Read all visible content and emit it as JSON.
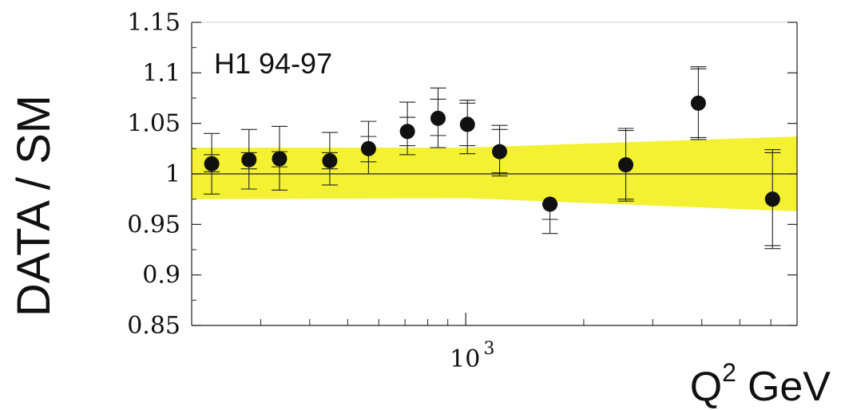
{
  "chart_data": {
    "type": "scatter",
    "xscale": "log",
    "xlim": [
      200,
      7000
    ],
    "ylim": [
      0.85,
      1.15
    ],
    "y_ticks": [
      0.85,
      0.9,
      0.95,
      1,
      1.05,
      1.1,
      1.15
    ],
    "y_tick_labels": [
      "0.85",
      "0.9",
      "0.95",
      "1",
      "1.05",
      "1.1",
      "1.15"
    ],
    "x_major_tick": {
      "value": 1000,
      "base": "10",
      "exponent": "3"
    },
    "xlabel": {
      "main": "Q",
      "sup": "2",
      "unit": "GeV"
    },
    "ylabel": "DATA / SM",
    "annotation": "H1 94-97",
    "reference_line": 1,
    "band": {
      "color": "#f2f020",
      "x": [
        200,
        1000,
        7000
      ],
      "lower": [
        0.975,
        0.976,
        0.963
      ],
      "upper": [
        1.026,
        1.026,
        1.037
      ]
    },
    "points": [
      {
        "x": 225,
        "y": 1.01,
        "err_tot": [
          0.98,
          1.04
        ],
        "err_stat": [
          1.002,
          1.019
        ]
      },
      {
        "x": 280,
        "y": 1.014,
        "err_tot": [
          0.985,
          1.044
        ],
        "err_stat": [
          1.005,
          1.021
        ]
      },
      {
        "x": 335,
        "y": 1.015,
        "err_tot": [
          0.984,
          1.047
        ],
        "err_stat": [
          1.007,
          1.022
        ]
      },
      {
        "x": 450,
        "y": 1.013,
        "err_tot": [
          0.989,
          1.041
        ],
        "err_stat": [
          1.005,
          1.021
        ]
      },
      {
        "x": 565,
        "y": 1.025,
        "err_tot": [
          1.0,
          1.052
        ],
        "err_stat": [
          1.012,
          1.037
        ]
      },
      {
        "x": 710,
        "y": 1.042,
        "err_tot": [
          1.019,
          1.071
        ],
        "err_stat": [
          1.028,
          1.056
        ]
      },
      {
        "x": 850,
        "y": 1.055,
        "err_tot": [
          1.026,
          1.085
        ],
        "err_stat": [
          1.038,
          1.074
        ]
      },
      {
        "x": 1010,
        "y": 1.049,
        "err_tot": [
          1.02,
          1.073
        ],
        "err_stat": [
          1.028,
          1.07
        ]
      },
      {
        "x": 1220,
        "y": 1.022,
        "err_tot": [
          0.998,
          1.048
        ],
        "err_stat": [
          1.001,
          1.044
        ]
      },
      {
        "x": 1640,
        "y": 0.97,
        "err_tot": [
          0.941,
          0.97
        ],
        "err_stat": [
          0.955,
          0.97
        ]
      },
      {
        "x": 2560,
        "y": 1.009,
        "err_tot": [
          0.973,
          1.045
        ],
        "err_stat": [
          0.975,
          1.043
        ]
      },
      {
        "x": 3920,
        "y": 1.07,
        "err_tot": [
          1.034,
          1.106
        ],
        "err_stat": [
          1.036,
          1.104
        ]
      },
      {
        "x": 6060,
        "y": 0.975,
        "err_tot": [
          0.926,
          1.024
        ],
        "err_stat": [
          0.929,
          1.021
        ]
      }
    ],
    "grid": false,
    "legend": "none"
  }
}
